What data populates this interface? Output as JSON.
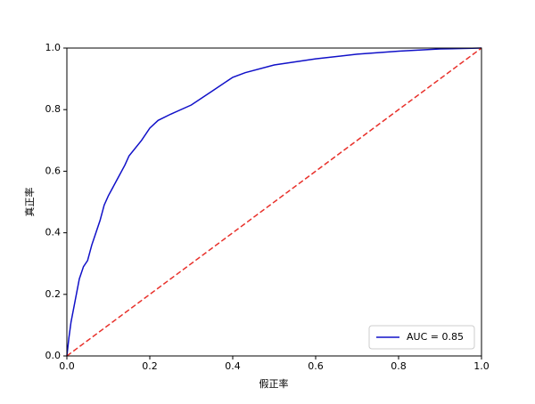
{
  "chart_data": {
    "type": "line",
    "x_label": "假正率",
    "y_label": "真正率",
    "xlim": [
      0,
      1
    ],
    "ylim": [
      0,
      1
    ],
    "xticks": [
      {
        "value": 0,
        "label": "0.0"
      },
      0.2,
      0.4,
      0.6,
      0.8,
      {
        "value": 1,
        "label": "1.0"
      }
    ],
    "yticks": [
      {
        "value": 0,
        "label": "0.0"
      },
      0.2,
      0.4,
      0.6,
      0.8,
      {
        "value": 1,
        "label": "1.0"
      }
    ],
    "legend": "lower right",
    "series": [
      {
        "name": "AUC = 0.85",
        "color": "#1010c8",
        "linestyle": "solid",
        "x": [
          0,
          0.005,
          0.01,
          0.02,
          0.03,
          0.04,
          0.05,
          0.06,
          0.07,
          0.08,
          0.09,
          0.1,
          0.12,
          0.14,
          0.15,
          0.18,
          0.2,
          0.22,
          0.25,
          0.3,
          0.35,
          0.4,
          0.43,
          0.5,
          0.6,
          0.7,
          0.8,
          0.9,
          1
        ],
        "values": [
          0,
          0.06,
          0.11,
          0.18,
          0.25,
          0.29,
          0.31,
          0.36,
          0.4,
          0.44,
          0.49,
          0.52,
          0.57,
          0.62,
          0.65,
          0.7,
          0.74,
          0.765,
          0.785,
          0.815,
          0.86,
          0.905,
          0.92,
          0.945,
          0.965,
          0.98,
          0.99,
          0.997,
          1
        ]
      },
      {
        "color": "#e8302a",
        "linestyle": "dashed",
        "x": [
          0,
          1
        ],
        "values": [
          0,
          1
        ]
      }
    ]
  }
}
